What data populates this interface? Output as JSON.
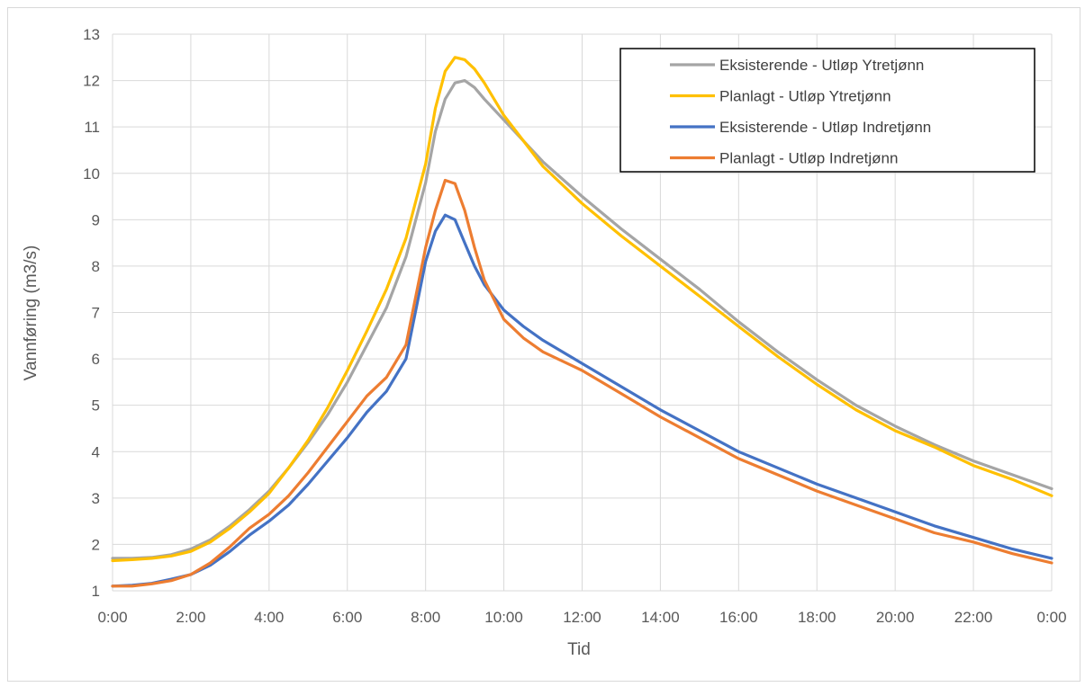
{
  "chart_data": {
    "type": "line",
    "title": "",
    "xlabel": "Tid",
    "ylabel": "Vannføring (m3/s)",
    "x_unit": "hours",
    "xlim": [
      0,
      24
    ],
    "ylim": [
      1,
      13
    ],
    "x_tick_labels": [
      "0:00",
      "2:00",
      "4:00",
      "6:00",
      "8:00",
      "10:00",
      "12:00",
      "14:00",
      "16:00",
      "18:00",
      "20:00",
      "22:00",
      "0:00"
    ],
    "y_tick_labels": [
      "1",
      "2",
      "3",
      "4",
      "5",
      "6",
      "7",
      "8",
      "9",
      "10",
      "11",
      "12",
      "13"
    ],
    "grid": true,
    "legend_position": "top-right",
    "x": [
      0,
      0.5,
      1,
      1.5,
      2,
      2.5,
      3,
      3.5,
      4,
      4.5,
      5,
      5.5,
      6,
      6.5,
      7,
      7.5,
      8,
      8.25,
      8.5,
      8.75,
      9,
      9.25,
      9.5,
      10,
      10.5,
      11,
      12,
      13,
      14,
      15,
      16,
      17,
      18,
      19,
      20,
      21,
      22,
      23,
      24
    ],
    "series": [
      {
        "name": "Eksisterende - Utløp Ytretjønn",
        "color": "#a5a5a5",
        "values": [
          1.7,
          1.7,
          1.72,
          1.78,
          1.9,
          2.1,
          2.4,
          2.75,
          3.15,
          3.65,
          4.2,
          4.8,
          5.5,
          6.3,
          7.1,
          8.2,
          9.8,
          10.9,
          11.6,
          11.95,
          12.0,
          11.85,
          11.6,
          11.15,
          10.7,
          10.25,
          9.5,
          8.8,
          8.15,
          7.5,
          6.8,
          6.15,
          5.55,
          5.0,
          4.55,
          4.15,
          3.8,
          3.5,
          3.2
        ]
      },
      {
        "name": "Planlagt - Utløp Ytretjønn",
        "color": "#ffc000",
        "values": [
          1.65,
          1.67,
          1.7,
          1.75,
          1.85,
          2.05,
          2.35,
          2.7,
          3.1,
          3.65,
          4.25,
          4.95,
          5.75,
          6.6,
          7.5,
          8.6,
          10.2,
          11.4,
          12.2,
          12.5,
          12.45,
          12.25,
          11.95,
          11.25,
          10.7,
          10.15,
          9.35,
          8.65,
          8.0,
          7.35,
          6.7,
          6.05,
          5.45,
          4.9,
          4.45,
          4.1,
          3.7,
          3.4,
          3.05
        ]
      },
      {
        "name": "Eksisterende - Utløp Indretjønn",
        "color": "#4472c4",
        "values": [
          1.1,
          1.12,
          1.16,
          1.25,
          1.35,
          1.55,
          1.85,
          2.2,
          2.5,
          2.85,
          3.3,
          3.8,
          4.3,
          4.85,
          5.3,
          6.0,
          8.1,
          8.75,
          9.1,
          9.0,
          8.5,
          8.0,
          7.6,
          7.05,
          6.7,
          6.4,
          5.9,
          5.4,
          4.9,
          4.45,
          4.0,
          3.65,
          3.3,
          3.0,
          2.7,
          2.4,
          2.15,
          1.9,
          1.7
        ]
      },
      {
        "name": "Planlagt - Utløp Indretjønn",
        "color": "#ed7d31",
        "values": [
          1.1,
          1.1,
          1.15,
          1.22,
          1.35,
          1.6,
          1.95,
          2.35,
          2.65,
          3.05,
          3.55,
          4.1,
          4.65,
          5.2,
          5.6,
          6.3,
          8.4,
          9.2,
          9.85,
          9.78,
          9.2,
          8.4,
          7.7,
          6.85,
          6.45,
          6.15,
          5.75,
          5.25,
          4.75,
          4.3,
          3.85,
          3.5,
          3.15,
          2.85,
          2.55,
          2.25,
          2.05,
          1.8,
          1.6
        ]
      }
    ]
  }
}
